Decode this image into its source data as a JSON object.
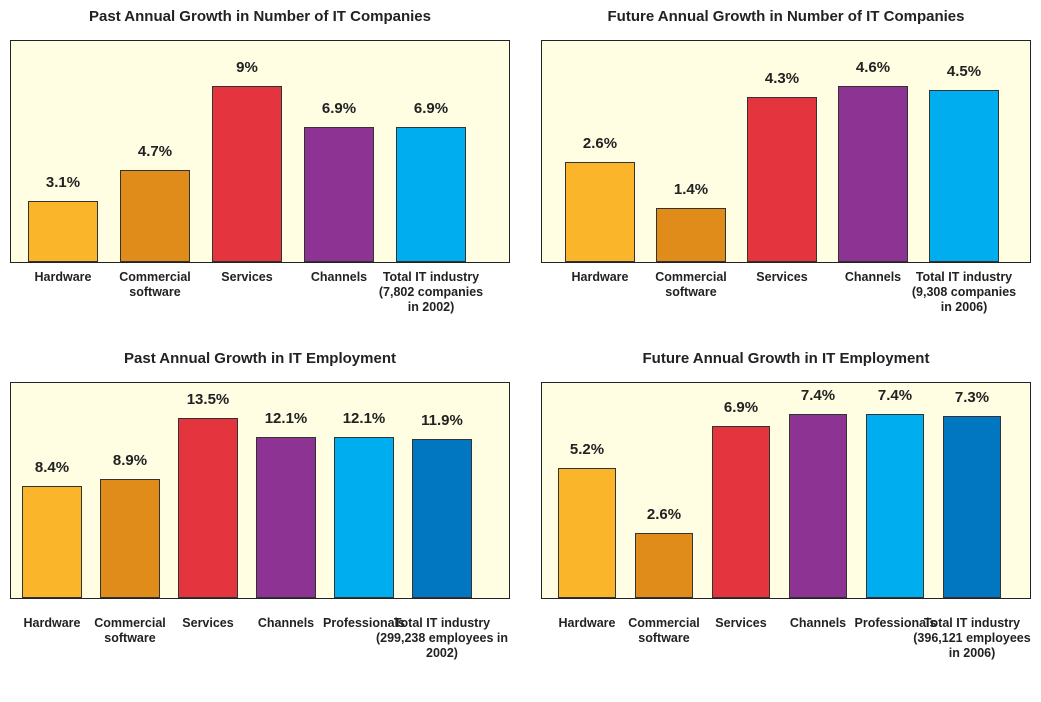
{
  "chart_data": [
    {
      "type": "bar",
      "title": "Past Annual Growth in Number of IT Companies",
      "categories": [
        "Hardware",
        "Commercial software",
        "Services",
        "Channels",
        "Total IT industry (7,802 companies in 2002)"
      ],
      "values": [
        3.1,
        4.7,
        9,
        6.9,
        6.9
      ],
      "value_labels": [
        "3.1%",
        "4.7%",
        "9%",
        "6.9%",
        "6.9%"
      ],
      "colors": [
        "#fbb52a",
        "#e08c1a",
        "#e4353f",
        "#8d3393",
        "#00aeef"
      ]
    },
    {
      "type": "bar",
      "title": "Future Annual Growth in Number of IT Companies",
      "categories": [
        "Hardware",
        "Commercial software",
        "Services",
        "Channels",
        "Total IT industry (9,308 companies in 2006)"
      ],
      "values": [
        2.6,
        1.4,
        4.3,
        4.6,
        4.5
      ],
      "value_labels": [
        "2.6%",
        "1.4%",
        "4.3%",
        "4.6%",
        "4.5%"
      ],
      "colors": [
        "#fbb52a",
        "#e08c1a",
        "#e4353f",
        "#8d3393",
        "#00aeef"
      ]
    },
    {
      "type": "bar",
      "title": "Past Annual Growth in IT Employment",
      "categories": [
        "Hardware",
        "Commercial software",
        "Services",
        "Channels",
        "Professionals",
        "Total IT industry (299,238 employees in 2002)"
      ],
      "values": [
        8.4,
        8.9,
        13.5,
        12.1,
        12.1,
        11.9
      ],
      "value_labels": [
        "8.4%",
        "8.9%",
        "13.5%",
        "12.1%",
        "12.1%",
        "11.9%"
      ],
      "colors": [
        "#fbb52a",
        "#e08c1a",
        "#e4353f",
        "#8d3393",
        "#00aeef",
        "#0077c0"
      ]
    },
    {
      "type": "bar",
      "title": "Future Annual Growth in IT Employment",
      "categories": [
        "Hardware",
        "Commercial software",
        "Services",
        "Channels",
        "Professionals",
        "Total IT industry (396,121 employees in 2006)"
      ],
      "values": [
        5.2,
        2.6,
        6.9,
        7.4,
        7.4,
        7.3
      ],
      "value_labels": [
        "5.2%",
        "2.6%",
        "6.9%",
        "7.4%",
        "7.4%",
        "7.3%"
      ],
      "colors": [
        "#fbb52a",
        "#e08c1a",
        "#e4353f",
        "#8d3393",
        "#00aeef",
        "#0077c0"
      ]
    }
  ]
}
